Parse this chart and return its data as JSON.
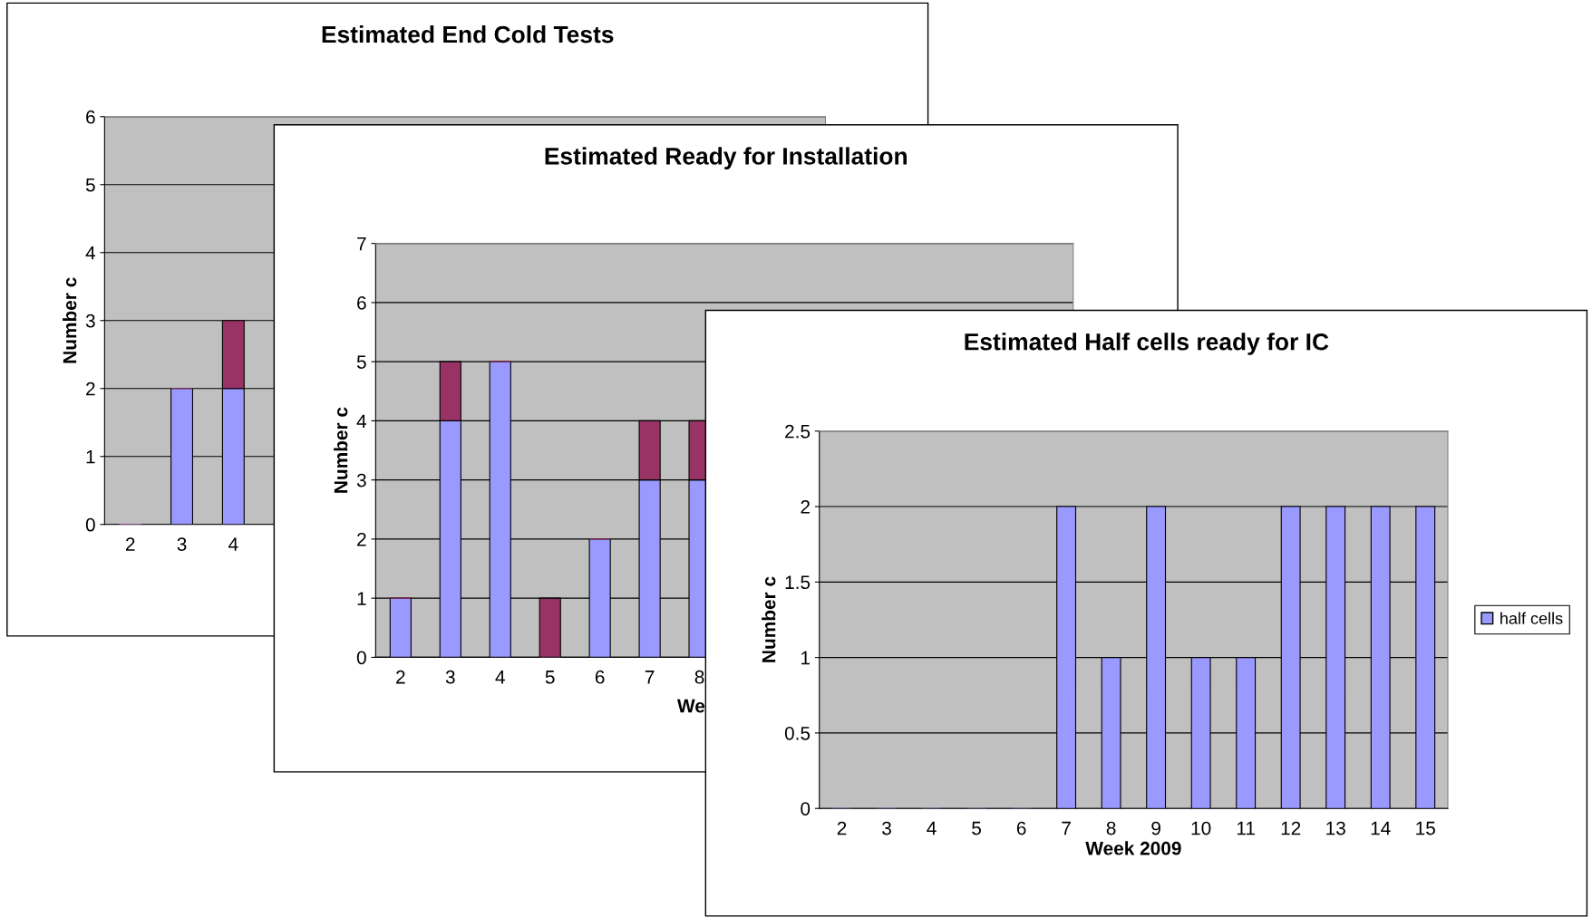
{
  "chart_data": [
    {
      "type": "bar",
      "title": "Estimated End Cold Tests",
      "ylabel": "Number c",
      "stacked": true,
      "grid": "y",
      "ylim": [
        0,
        6
      ],
      "yticks": [
        0,
        1,
        2,
        3,
        4,
        5,
        6
      ],
      "categories": [
        "2",
        "3",
        "4",
        null,
        null,
        null,
        null,
        null,
        null,
        null,
        null,
        null,
        null,
        null
      ],
      "series": [
        {
          "color": "#9999ff",
          "values": [
            0,
            2,
            2,
            null,
            null,
            null,
            null,
            null,
            null,
            null,
            null,
            null,
            null,
            null
          ]
        },
        {
          "color": "#993366",
          "values": [
            0,
            0,
            1,
            null,
            null,
            null,
            null,
            null,
            null,
            null,
            null,
            null,
            null,
            null
          ]
        }
      ]
    },
    {
      "type": "bar",
      "title": "Estimated Ready for Installation",
      "ylabel": "Number c",
      "xlabel": "We",
      "stacked": true,
      "grid": "y",
      "ylim": [
        0,
        7
      ],
      "yticks": [
        0,
        1,
        2,
        3,
        4,
        5,
        6,
        7
      ],
      "categories": [
        "2",
        "3",
        "4",
        "5",
        "6",
        "7",
        "8",
        null,
        null,
        null,
        null,
        null,
        null,
        null
      ],
      "series": [
        {
          "color": "#9999ff",
          "values": [
            1,
            4,
            5,
            0,
            2,
            3,
            3,
            null,
            null,
            null,
            null,
            null,
            null,
            null
          ]
        },
        {
          "color": "#993366",
          "values": [
            0,
            1,
            0,
            1,
            0,
            1,
            1,
            null,
            null,
            null,
            null,
            null,
            null,
            null
          ]
        }
      ]
    },
    {
      "type": "bar",
      "title": "Estimated Half cells ready for IC",
      "ylabel": "Number c",
      "xlabel": "Week 2009",
      "grid": "y",
      "legend": "right",
      "ylim": [
        0,
        2.5
      ],
      "yticks": [
        0,
        0.5,
        1,
        1.5,
        2,
        2.5
      ],
      "categories": [
        "2",
        "3",
        "4",
        "5",
        "6",
        "7",
        "8",
        "9",
        "10",
        "11",
        "12",
        "13",
        "14",
        "15"
      ],
      "series": [
        {
          "name": "half cells",
          "color": "#9999ff",
          "values": [
            0,
            0,
            0,
            0,
            0,
            2,
            1,
            2,
            1,
            1,
            2,
            2,
            2,
            2
          ]
        }
      ]
    }
  ]
}
